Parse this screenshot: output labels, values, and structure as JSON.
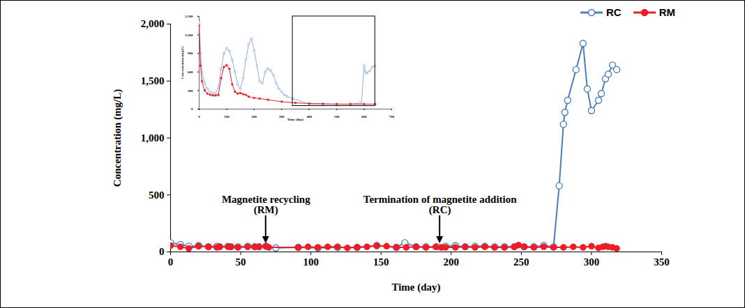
{
  "chart_data": [
    {
      "type": "line",
      "x_label": "Time (day)",
      "y_label": "Concentration (mg/L)",
      "xlim": [
        0,
        350
      ],
      "xticks": [
        0,
        50,
        100,
        150,
        200,
        250,
        300,
        350
      ],
      "ylim": [
        0,
        2000
      ],
      "yticks": [
        0,
        500,
        {
          "value": 1000,
          "label": "1,000"
        },
        {
          "value": 1500,
          "label": "1,500"
        },
        {
          "value": 2000,
          "label": "2,000"
        }
      ],
      "legend": "top-right",
      "series": [
        {
          "name": "RC",
          "color": "#4a7ebb",
          "marker": "open circle",
          "x": [
            0,
            7,
            13,
            20,
            27,
            33,
            35,
            41,
            43,
            48,
            55,
            60,
            63,
            68,
            75,
            91,
            105,
            119,
            133,
            147,
            161,
            167,
            175,
            182,
            190,
            196,
            203,
            210,
            217,
            224,
            231,
            238,
            245,
            252,
            259,
            266,
            273,
            277,
            280,
            281,
            283,
            289,
            294,
            297,
            300,
            305,
            307,
            310,
            312,
            315,
            318
          ],
          "values": [
            80,
            65,
            50,
            55,
            45,
            50,
            45,
            50,
            45,
            45,
            50,
            45,
            45,
            50,
            35,
            40,
            35,
            40,
            40,
            55,
            40,
            80,
            45,
            45,
            45,
            50,
            55,
            45,
            50,
            50,
            45,
            45,
            45,
            45,
            45,
            55,
            45,
            580,
            1120,
            1225,
            1330,
            1600,
            1830,
            1430,
            1240,
            1330,
            1390,
            1520,
            1560,
            1640,
            1600
          ]
        },
        {
          "name": "RM",
          "color": "#ee1c25",
          "marker": "filled circle",
          "x": [
            0,
            7,
            13,
            20,
            27,
            33,
            35,
            41,
            43,
            48,
            55,
            60,
            63,
            68,
            70,
            91,
            98,
            105,
            112,
            119,
            126,
            133,
            140,
            147,
            154,
            161,
            168,
            175,
            182,
            189,
            193,
            196,
            203,
            210,
            217,
            224,
            231,
            238,
            245,
            248,
            252,
            259,
            266,
            273,
            280,
            287,
            294,
            300,
            305,
            308,
            310,
            312,
            315,
            318
          ],
          "values": [
            55,
            45,
            30,
            50,
            45,
            40,
            45,
            45,
            45,
            40,
            45,
            45,
            45,
            50,
            40,
            40,
            45,
            40,
            45,
            45,
            35,
            40,
            45,
            55,
            50,
            40,
            40,
            45,
            40,
            45,
            40,
            40,
            40,
            45,
            40,
            45,
            40,
            40,
            45,
            60,
            45,
            40,
            45,
            40,
            40,
            45,
            40,
            50,
            35,
            45,
            50,
            45,
            40,
            30
          ]
        }
      ],
      "annotations": [
        {
          "text": "Magnetite recycling\n(RM)",
          "x": 68
        },
        {
          "text": "Termination of magnetite addition\n(RC)",
          "x": 192
        }
      ]
    },
    {
      "type": "line",
      "x_label": "Time (day)",
      "y_label": "Concentration (mg/L)",
      "xlim": [
        0,
        700
      ],
      "xticks": [
        0,
        100,
        200,
        300,
        400,
        500,
        600,
        700
      ],
      "ylim": [
        0,
        1500
      ],
      "yticks": [
        0,
        300,
        600,
        900,
        {
          "value": 1200,
          "label": "1,200"
        },
        {
          "value": 1500,
          "label": "1,500"
        }
      ],
      "box": {
        "xlim": [
          340,
          640
        ],
        "ylim": [
          50,
          1500
        ]
      },
      "series": [
        {
          "color": "#8fb0dc",
          "marker": "open circle",
          "x": [
            0,
            5,
            10,
            20,
            30,
            40,
            50,
            60,
            70,
            80,
            90,
            100,
            110,
            120,
            130,
            140,
            150,
            160,
            170,
            180,
            190,
            200,
            210,
            220,
            230,
            240,
            250,
            260,
            270,
            280,
            290,
            300,
            310,
            320,
            340,
            400,
            450,
            500,
            550,
            590,
            600,
            605,
            610,
            620,
            630,
            640
          ],
          "values": [
            1400,
            900,
            600,
            420,
            330,
            280,
            250,
            260,
            350,
            650,
            900,
            980,
            940,
            800,
            600,
            400,
            330,
            500,
            800,
            1050,
            1140,
            950,
            700,
            450,
            420,
            600,
            650,
            620,
            550,
            420,
            330,
            280,
            230,
            200,
            170,
            80,
            80,
            80,
            80,
            100,
            700,
            600,
            580,
            620,
            680,
            700
          ]
        },
        {
          "color": "#ee1c25",
          "marker": "filled circle",
          "x": [
            0,
            5,
            10,
            20,
            30,
            40,
            50,
            60,
            70,
            80,
            90,
            100,
            110,
            120,
            130,
            140,
            150,
            160,
            170,
            180,
            200,
            220,
            250,
            300,
            350,
            400,
            450,
            500,
            550,
            600,
            640
          ],
          "values": [
            1350,
            700,
            450,
            300,
            250,
            230,
            220,
            220,
            230,
            500,
            680,
            710,
            650,
            400,
            280,
            250,
            260,
            240,
            230,
            200,
            180,
            170,
            150,
            120,
            100,
            90,
            85,
            80,
            80,
            80,
            80
          ]
        }
      ]
    }
  ]
}
